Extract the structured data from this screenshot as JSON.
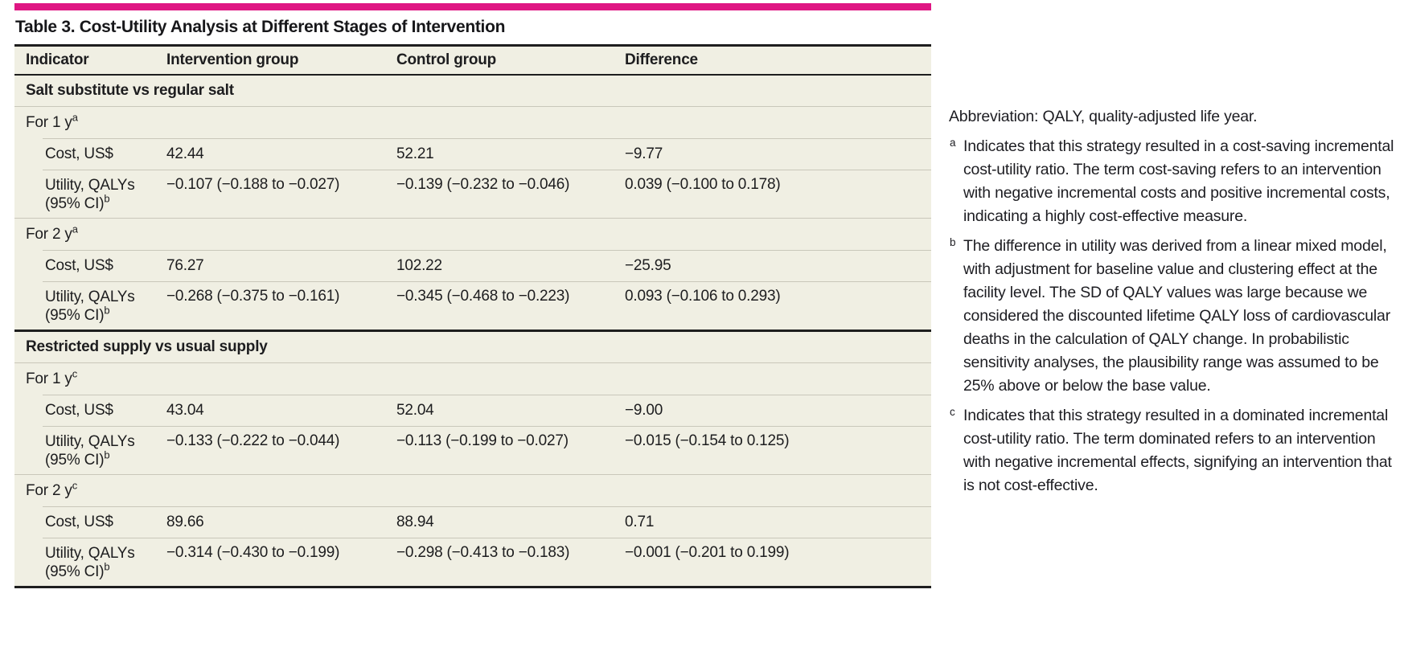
{
  "accent_color": "#df1683",
  "table": {
    "title": "Table 3. Cost-Utility Analysis at Different Stages of Intervention",
    "columns": [
      "Indicator",
      "Intervention group",
      "Control group",
      "Difference"
    ],
    "sections": [
      {
        "header": "Salt substitute vs regular salt",
        "subsections": [
          {
            "label": "For 1 y",
            "sup": "a",
            "rows": [
              {
                "label": "Cost, US$",
                "sup": "",
                "intervention": "42.44",
                "control": "52.21",
                "difference": "−9.77"
              },
              {
                "label": "Utility, QALYs (95% CI)",
                "sup": "b",
                "intervention": "−0.107 (−0.188 to −0.027)",
                "control": "−0.139 (−0.232 to −0.046)",
                "difference": "0.039 (−0.100 to 0.178)"
              }
            ]
          },
          {
            "label": "For 2 y",
            "sup": "a",
            "rows": [
              {
                "label": "Cost, US$",
                "sup": "",
                "intervention": "76.27",
                "control": "102.22",
                "difference": "−25.95"
              },
              {
                "label": "Utility, QALYs (95% CI)",
                "sup": "b",
                "intervention": "−0.268 (−0.375 to −0.161)",
                "control": "−0.345 (−0.468 to −0.223)",
                "difference": "0.093 (−0.106 to 0.293)"
              }
            ]
          }
        ]
      },
      {
        "header": "Restricted supply vs usual supply",
        "subsections": [
          {
            "label": "For 1 y",
            "sup": "c",
            "rows": [
              {
                "label": "Cost, US$",
                "sup": "",
                "intervention": "43.04",
                "control": "52.04",
                "difference": "−9.00"
              },
              {
                "label": "Utility, QALYs (95% CI)",
                "sup": "b",
                "intervention": "−0.133 (−0.222 to −0.044)",
                "control": "−0.113 (−0.199 to −0.027)",
                "difference": "−0.015 (−0.154 to 0.125)"
              }
            ]
          },
          {
            "label": "For 2 y",
            "sup": "c",
            "rows": [
              {
                "label": "Cost, US$",
                "sup": "",
                "intervention": "89.66",
                "control": "88.94",
                "difference": "0.71"
              },
              {
                "label": "Utility, QALYs (95% CI)",
                "sup": "b",
                "intervention": "−0.314 (−0.430 to −0.199)",
                "control": "−0.298 (−0.413 to −0.183)",
                "difference": "−0.001 (−0.201 to 0.199)"
              }
            ]
          }
        ]
      }
    ]
  },
  "footnotes": {
    "abbreviation": "Abbreviation: QALY, quality-adjusted life year.",
    "items": [
      {
        "marker": "a",
        "text": "Indicates that this strategy resulted in a cost-saving incremental cost-utility ratio. The term cost-saving refers to an intervention with negative incremental costs and positive incremental costs, indicating a highly cost-effective measure."
      },
      {
        "marker": "b",
        "text": "The difference in utility was derived from a linear mixed model, with adjustment for baseline value and clustering effect at the facility level. The SD of QALY values was large because we considered the discounted lifetime QALY loss of cardiovascular deaths in the calculation of QALY change. In probabilistic sensitivity analyses, the plausibility range was assumed to be 25% above or below the base value."
      },
      {
        "marker": "c",
        "text": "Indicates that this strategy resulted in a dominated incremental cost-utility ratio. The term dominated refers to an intervention with negative incremental effects, signifying an intervention that is not cost-effective."
      }
    ]
  }
}
